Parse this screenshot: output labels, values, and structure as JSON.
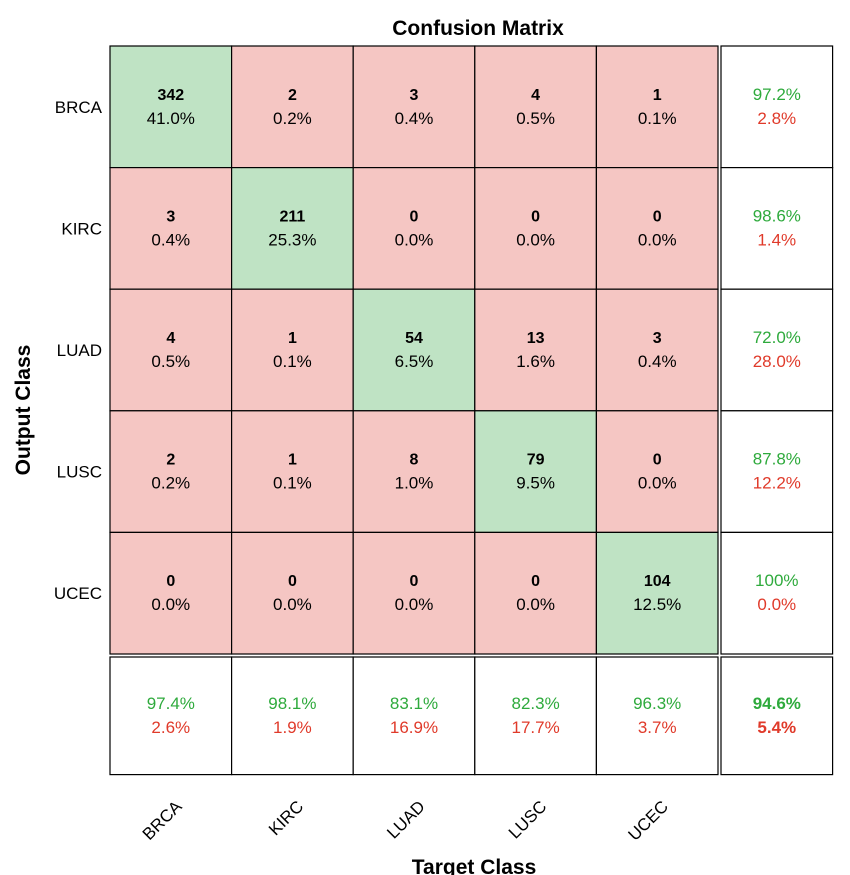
{
  "chart_data": {
    "type": "heatmap",
    "title": "Confusion Matrix",
    "xlabel": "Target Class",
    "ylabel": "Output Class",
    "classes": [
      "BRCA",
      "KIRC",
      "LUAD",
      "LUSC",
      "UCEC"
    ],
    "counts": [
      [
        342,
        2,
        3,
        4,
        1
      ],
      [
        3,
        211,
        0,
        0,
        0
      ],
      [
        4,
        1,
        54,
        13,
        3
      ],
      [
        2,
        1,
        8,
        79,
        0
      ],
      [
        0,
        0,
        0,
        0,
        104
      ]
    ],
    "percents": [
      [
        "41.0%",
        "0.2%",
        "0.4%",
        "0.5%",
        "0.1%"
      ],
      [
        "0.4%",
        "25.3%",
        "0.0%",
        "0.0%",
        "0.0%"
      ],
      [
        "0.5%",
        "0.1%",
        "6.5%",
        "1.6%",
        "0.4%"
      ],
      [
        "0.2%",
        "0.1%",
        "1.0%",
        "9.5%",
        "0.0%"
      ],
      [
        "0.0%",
        "0.0%",
        "0.0%",
        "0.0%",
        "12.5%"
      ]
    ],
    "row_summary": [
      {
        "correct": "97.2%",
        "incorrect": "2.8%"
      },
      {
        "correct": "98.6%",
        "incorrect": "1.4%"
      },
      {
        "correct": "72.0%",
        "incorrect": "28.0%"
      },
      {
        "correct": "87.8%",
        "incorrect": "12.2%"
      },
      {
        "correct": "100%",
        "incorrect": "0.0%"
      }
    ],
    "col_summary": [
      {
        "correct": "97.4%",
        "incorrect": "2.6%"
      },
      {
        "correct": "98.1%",
        "incorrect": "1.9%"
      },
      {
        "correct": "83.1%",
        "incorrect": "16.9%"
      },
      {
        "correct": "82.3%",
        "incorrect": "17.7%"
      },
      {
        "correct": "96.3%",
        "incorrect": "3.7%"
      }
    ],
    "overall": {
      "correct": "94.6%",
      "incorrect": "5.4%"
    },
    "colors": {
      "diagonal_fill": "#bfe3c4",
      "off_diagonal_fill": "#f5c6c3",
      "summary_fill": "#ffffff",
      "correct_text": "#2eaa3c",
      "incorrect_text": "#e03a2a",
      "grid_line": "#000000"
    }
  }
}
